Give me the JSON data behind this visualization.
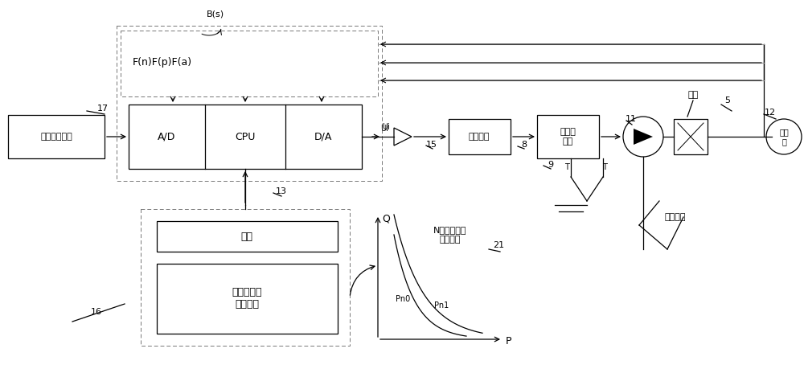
{
  "bg_color": "#ffffff",
  "line_color": "#000000",
  "gray_color": "#aaaaaa",
  "labels": {
    "customer_input": "客户输入装置",
    "ad": "A/D",
    "cpu": "CPU",
    "da": "D/A",
    "elec_valve": "电比例阀",
    "servo_valve": "伺服换\n向阀",
    "gear": "档位",
    "engine_power": "发动机预先\n设定功率",
    "power_source": "动力\n源",
    "Bs": "B(s)",
    "Fna": "F(n)F(p)F(a)",
    "Ui": "Ui",
    "num_17": "17",
    "num_15": "15",
    "num_8": "8",
    "num_9": "9",
    "num_11": "11",
    "num_13": "13",
    "num_16": "16",
    "num_5": "5",
    "num_12": "12",
    "num_21": "21",
    "load": "负载",
    "angle_limit": "角度限位",
    "Q_label": "Q",
    "P_label": "P",
    "curve_title": "N档位下功率\n限制曲线",
    "Pn0": "Pn0",
    "Pn1": "Pn1"
  }
}
